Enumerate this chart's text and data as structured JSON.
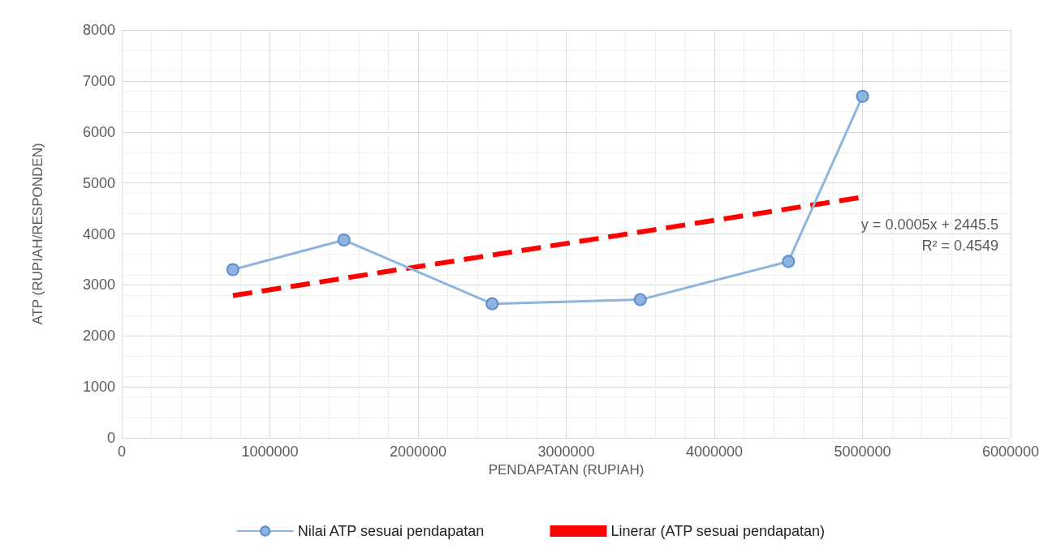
{
  "chart_data": {
    "type": "line",
    "xlabel": "PENDAPATAN (RUPIAH)",
    "ylabel": "ATP (RUPIAH/RESPONDEN)",
    "xlim": [
      0,
      6000000
    ],
    "xticks": [
      0,
      1000000,
      2000000,
      3000000,
      4000000,
      5000000,
      6000000
    ],
    "ylim": [
      0,
      8000
    ],
    "yticks": [
      0,
      1000,
      2000,
      3000,
      4000,
      5000,
      6000,
      7000,
      8000
    ],
    "grid": true,
    "legend": "bottom",
    "series": [
      {
        "name": "Nilai ATP sesuai pendapatan",
        "color": "#8fb4de",
        "marker": "circle",
        "line_style": "solid",
        "x": [
          750000,
          1500000,
          2500000,
          3500000,
          4500000,
          5000000
        ],
        "values": [
          3300,
          3880,
          2630,
          2710,
          3460,
          6700
        ]
      },
      {
        "name": "Linerar (ATP sesuai pendapatan)",
        "color": "#ff0000",
        "marker": "none",
        "line_style": "dashed",
        "x": [
          750000,
          5000000
        ],
        "values": [
          2790,
          4720
        ]
      }
    ],
    "annotations": [
      "y = 0.0005x + 2445.5",
      "R² = 0.4549"
    ]
  }
}
